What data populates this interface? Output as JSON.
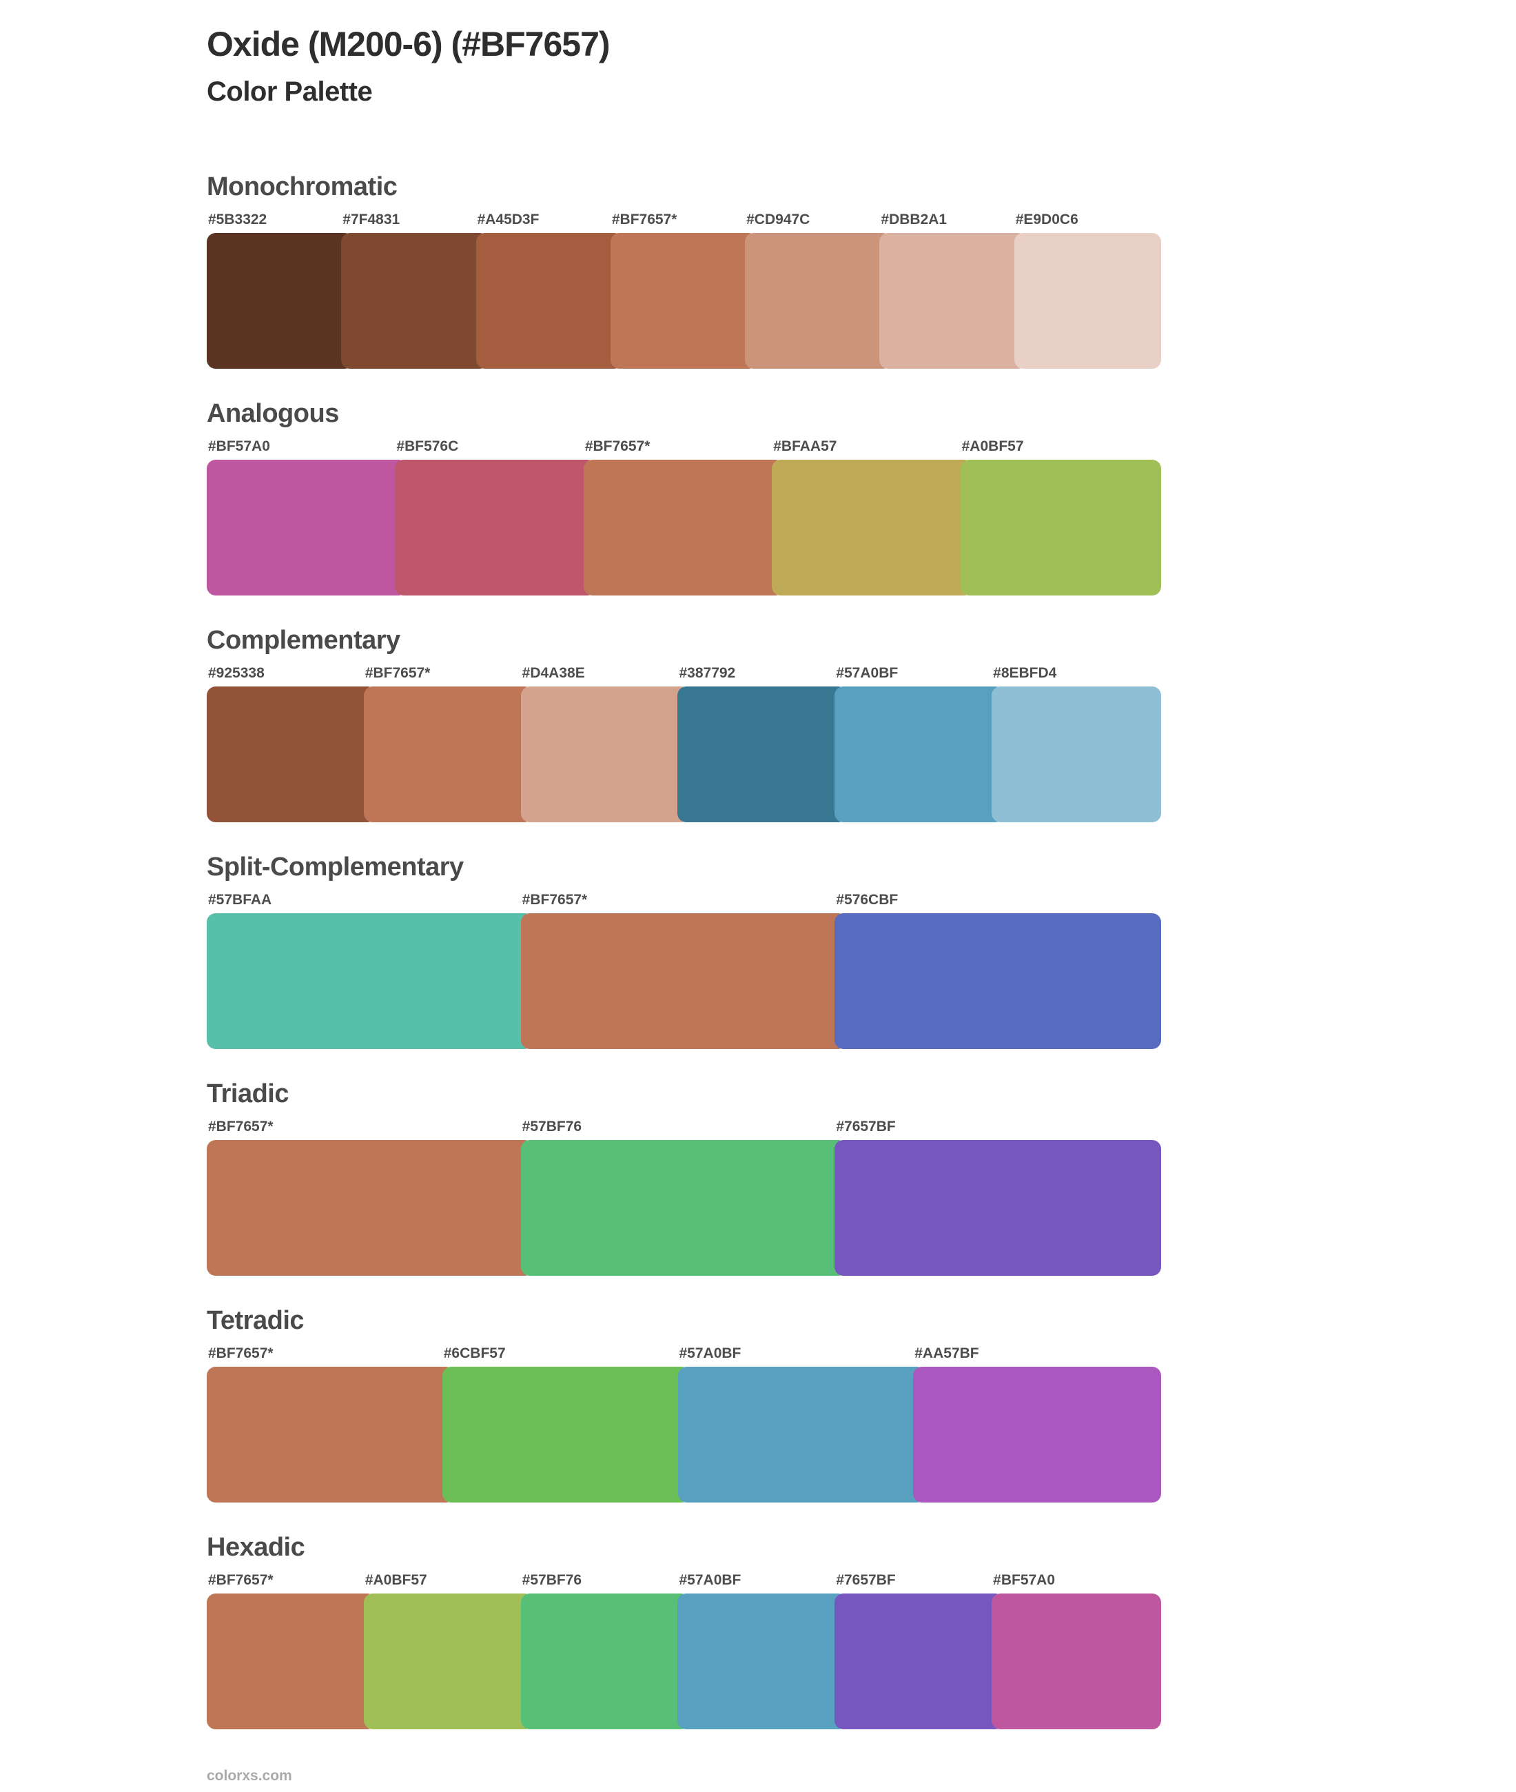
{
  "page": {
    "title": "Oxide (M200-6) (#BF7657)",
    "subtitle": "Color Palette",
    "footer_link": "colorxs.com"
  },
  "theme": {
    "bg": "#ffffff",
    "title_color": "#2e2e2e",
    "heading_color": "#4a4a4a",
    "label_color": "#4d4d4d",
    "footer_color": "#a9a9a9",
    "base_color": "#BF7657"
  },
  "sections": [
    {
      "name": "Monochromatic",
      "swatches": [
        {
          "label": "#5B3322",
          "color": "#5B3322"
        },
        {
          "label": "#7F4831",
          "color": "#7F4831"
        },
        {
          "label": "#A45D3F",
          "color": "#A45D3F"
        },
        {
          "label": "#BF7657*",
          "color": "#BF7657"
        },
        {
          "label": "#CD947C",
          "color": "#CD947C"
        },
        {
          "label": "#DBB2A1",
          "color": "#DBB2A1"
        },
        {
          "label": "#E9D0C6",
          "color": "#E9D0C6"
        }
      ]
    },
    {
      "name": "Analogous",
      "swatches": [
        {
          "label": "#BF57A0",
          "color": "#BF57A0"
        },
        {
          "label": "#BF576C",
          "color": "#BF576C"
        },
        {
          "label": "#BF7657*",
          "color": "#BF7657"
        },
        {
          "label": "#BFAA57",
          "color": "#BFAA57"
        },
        {
          "label": "#A0BF57",
          "color": "#A0BF57"
        }
      ]
    },
    {
      "name": "Complementary",
      "swatches": [
        {
          "label": "#925338",
          "color": "#925338"
        },
        {
          "label": "#BF7657*",
          "color": "#BF7657"
        },
        {
          "label": "#D4A38E",
          "color": "#D4A38E"
        },
        {
          "label": "#387792",
          "color": "#387792"
        },
        {
          "label": "#57A0BF",
          "color": "#57A0BF"
        },
        {
          "label": "#8EBFD4",
          "color": "#8EBFD4"
        }
      ]
    },
    {
      "name": "Split-Complementary",
      "swatches": [
        {
          "label": "#57BFAA",
          "color": "#57BFAA"
        },
        {
          "label": "#BF7657*",
          "color": "#BF7657"
        },
        {
          "label": "#576CBF",
          "color": "#576CBF"
        }
      ]
    },
    {
      "name": "Triadic",
      "swatches": [
        {
          "label": "#BF7657*",
          "color": "#BF7657"
        },
        {
          "label": "#57BF76",
          "color": "#57BF76"
        },
        {
          "label": "#7657BF",
          "color": "#7657BF"
        }
      ]
    },
    {
      "name": "Tetradic",
      "swatches": [
        {
          "label": "#BF7657*",
          "color": "#BF7657"
        },
        {
          "label": "#6CBF57",
          "color": "#6CBF57"
        },
        {
          "label": "#57A0BF",
          "color": "#57A0BF"
        },
        {
          "label": "#AA57BF",
          "color": "#AA57BF"
        }
      ]
    },
    {
      "name": "Hexadic",
      "swatches": [
        {
          "label": "#BF7657*",
          "color": "#BF7657"
        },
        {
          "label": "#A0BF57",
          "color": "#A0BF57"
        },
        {
          "label": "#57BF76",
          "color": "#57BF76"
        },
        {
          "label": "#57A0BF",
          "color": "#57A0BF"
        },
        {
          "label": "#7657BF",
          "color": "#7657BF"
        },
        {
          "label": "#BF57A0",
          "color": "#BF57A0"
        }
      ]
    }
  ]
}
